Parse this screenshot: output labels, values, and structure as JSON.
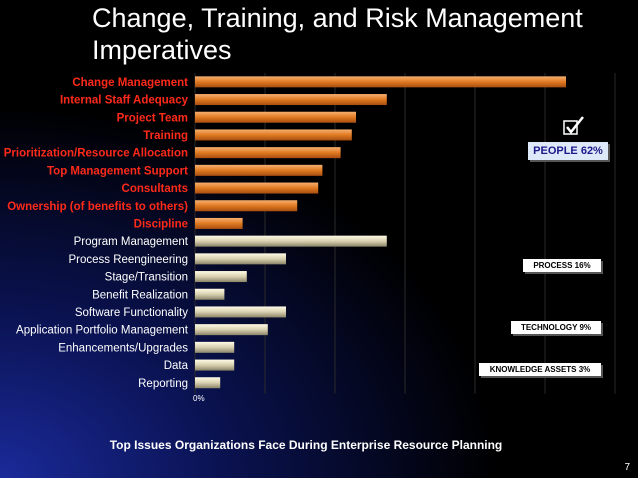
{
  "slide": {
    "title": "Change, Training, and Risk Management Imperatives",
    "caption": "Top Issues Organizations Face During Enterprise Resource Planning",
    "page_number": "7"
  },
  "colors": {
    "people_bar": "#e8852e",
    "other_bar": "#d8d0b0",
    "people_label": "#ff2a1a",
    "other_label": "#ffffff"
  },
  "groups": {
    "people": "PEOPLE 62%",
    "process": "PROCESS 16%",
    "technology": "TECHNOLOGY 9%",
    "knowledge": "KNOWLEDGE ASSETS 3%"
  },
  "chart_data": {
    "type": "bar",
    "orientation": "horizontal",
    "categories": [
      "Change Management",
      "Internal Staff Adequacy",
      "Project Team",
      "Training",
      "Prioritization/Resource Allocation",
      "Top Management Support",
      "Consultants",
      "Ownership (of benefits to others)",
      "Discipline",
      "Program Management",
      "Process Reengineering",
      "Stage/Transition",
      "Benefit Realization",
      "Software Functionality",
      "Application Portfolio Management",
      "Enhancements/Upgrades",
      "Data",
      "Reporting"
    ],
    "groups": [
      "people",
      "people",
      "people",
      "people",
      "people",
      "people",
      "people",
      "people",
      "people",
      "process",
      "process",
      "process",
      "process",
      "technology",
      "technology",
      "technology",
      "knowledge",
      "knowledge"
    ],
    "values": [
      26.5,
      13.7,
      11.5,
      11.2,
      10.4,
      9.1,
      8.8,
      7.3,
      3.4,
      13.7,
      6.5,
      3.7,
      2.1,
      6.5,
      5.2,
      2.8,
      2.8,
      1.8
    ],
    "xlim": [
      0,
      30
    ],
    "x_tick_labels": [
      "0%"
    ],
    "grid": true
  }
}
